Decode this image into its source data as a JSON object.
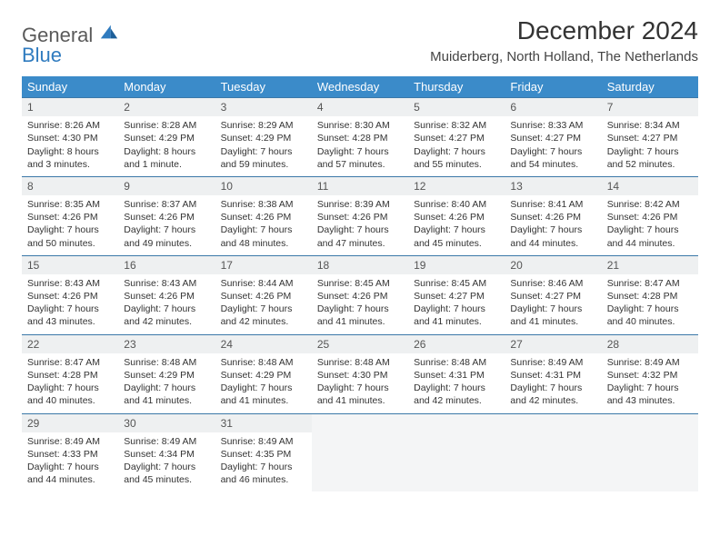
{
  "logo": {
    "general": "General",
    "blue": "Blue"
  },
  "title": "December 2024",
  "location": "Muiderberg, North Holland, The Netherlands",
  "colors": {
    "header_bg": "#3b8bc9",
    "header_text": "#ffffff",
    "daynum_bg": "#eef0f1",
    "daynum_border": "#3b78a8",
    "logo_blue": "#2f7bbf",
    "logo_gray": "#5a5a5a"
  },
  "weekdays": [
    "Sunday",
    "Monday",
    "Tuesday",
    "Wednesday",
    "Thursday",
    "Friday",
    "Saturday"
  ],
  "weeks": [
    [
      {
        "day": "1",
        "sunrise": "Sunrise: 8:26 AM",
        "sunset": "Sunset: 4:30 PM",
        "daylight": "Daylight: 8 hours and 3 minutes."
      },
      {
        "day": "2",
        "sunrise": "Sunrise: 8:28 AM",
        "sunset": "Sunset: 4:29 PM",
        "daylight": "Daylight: 8 hours and 1 minute."
      },
      {
        "day": "3",
        "sunrise": "Sunrise: 8:29 AM",
        "sunset": "Sunset: 4:29 PM",
        "daylight": "Daylight: 7 hours and 59 minutes."
      },
      {
        "day": "4",
        "sunrise": "Sunrise: 8:30 AM",
        "sunset": "Sunset: 4:28 PM",
        "daylight": "Daylight: 7 hours and 57 minutes."
      },
      {
        "day": "5",
        "sunrise": "Sunrise: 8:32 AM",
        "sunset": "Sunset: 4:27 PM",
        "daylight": "Daylight: 7 hours and 55 minutes."
      },
      {
        "day": "6",
        "sunrise": "Sunrise: 8:33 AM",
        "sunset": "Sunset: 4:27 PM",
        "daylight": "Daylight: 7 hours and 54 minutes."
      },
      {
        "day": "7",
        "sunrise": "Sunrise: 8:34 AM",
        "sunset": "Sunset: 4:27 PM",
        "daylight": "Daylight: 7 hours and 52 minutes."
      }
    ],
    [
      {
        "day": "8",
        "sunrise": "Sunrise: 8:35 AM",
        "sunset": "Sunset: 4:26 PM",
        "daylight": "Daylight: 7 hours and 50 minutes."
      },
      {
        "day": "9",
        "sunrise": "Sunrise: 8:37 AM",
        "sunset": "Sunset: 4:26 PM",
        "daylight": "Daylight: 7 hours and 49 minutes."
      },
      {
        "day": "10",
        "sunrise": "Sunrise: 8:38 AM",
        "sunset": "Sunset: 4:26 PM",
        "daylight": "Daylight: 7 hours and 48 minutes."
      },
      {
        "day": "11",
        "sunrise": "Sunrise: 8:39 AM",
        "sunset": "Sunset: 4:26 PM",
        "daylight": "Daylight: 7 hours and 47 minutes."
      },
      {
        "day": "12",
        "sunrise": "Sunrise: 8:40 AM",
        "sunset": "Sunset: 4:26 PM",
        "daylight": "Daylight: 7 hours and 45 minutes."
      },
      {
        "day": "13",
        "sunrise": "Sunrise: 8:41 AM",
        "sunset": "Sunset: 4:26 PM",
        "daylight": "Daylight: 7 hours and 44 minutes."
      },
      {
        "day": "14",
        "sunrise": "Sunrise: 8:42 AM",
        "sunset": "Sunset: 4:26 PM",
        "daylight": "Daylight: 7 hours and 44 minutes."
      }
    ],
    [
      {
        "day": "15",
        "sunrise": "Sunrise: 8:43 AM",
        "sunset": "Sunset: 4:26 PM",
        "daylight": "Daylight: 7 hours and 43 minutes."
      },
      {
        "day": "16",
        "sunrise": "Sunrise: 8:43 AM",
        "sunset": "Sunset: 4:26 PM",
        "daylight": "Daylight: 7 hours and 42 minutes."
      },
      {
        "day": "17",
        "sunrise": "Sunrise: 8:44 AM",
        "sunset": "Sunset: 4:26 PM",
        "daylight": "Daylight: 7 hours and 42 minutes."
      },
      {
        "day": "18",
        "sunrise": "Sunrise: 8:45 AM",
        "sunset": "Sunset: 4:26 PM",
        "daylight": "Daylight: 7 hours and 41 minutes."
      },
      {
        "day": "19",
        "sunrise": "Sunrise: 8:45 AM",
        "sunset": "Sunset: 4:27 PM",
        "daylight": "Daylight: 7 hours and 41 minutes."
      },
      {
        "day": "20",
        "sunrise": "Sunrise: 8:46 AM",
        "sunset": "Sunset: 4:27 PM",
        "daylight": "Daylight: 7 hours and 41 minutes."
      },
      {
        "day": "21",
        "sunrise": "Sunrise: 8:47 AM",
        "sunset": "Sunset: 4:28 PM",
        "daylight": "Daylight: 7 hours and 40 minutes."
      }
    ],
    [
      {
        "day": "22",
        "sunrise": "Sunrise: 8:47 AM",
        "sunset": "Sunset: 4:28 PM",
        "daylight": "Daylight: 7 hours and 40 minutes."
      },
      {
        "day": "23",
        "sunrise": "Sunrise: 8:48 AM",
        "sunset": "Sunset: 4:29 PM",
        "daylight": "Daylight: 7 hours and 41 minutes."
      },
      {
        "day": "24",
        "sunrise": "Sunrise: 8:48 AM",
        "sunset": "Sunset: 4:29 PM",
        "daylight": "Daylight: 7 hours and 41 minutes."
      },
      {
        "day": "25",
        "sunrise": "Sunrise: 8:48 AM",
        "sunset": "Sunset: 4:30 PM",
        "daylight": "Daylight: 7 hours and 41 minutes."
      },
      {
        "day": "26",
        "sunrise": "Sunrise: 8:48 AM",
        "sunset": "Sunset: 4:31 PM",
        "daylight": "Daylight: 7 hours and 42 minutes."
      },
      {
        "day": "27",
        "sunrise": "Sunrise: 8:49 AM",
        "sunset": "Sunset: 4:31 PM",
        "daylight": "Daylight: 7 hours and 42 minutes."
      },
      {
        "day": "28",
        "sunrise": "Sunrise: 8:49 AM",
        "sunset": "Sunset: 4:32 PM",
        "daylight": "Daylight: 7 hours and 43 minutes."
      }
    ],
    [
      {
        "day": "29",
        "sunrise": "Sunrise: 8:49 AM",
        "sunset": "Sunset: 4:33 PM",
        "daylight": "Daylight: 7 hours and 44 minutes."
      },
      {
        "day": "30",
        "sunrise": "Sunrise: 8:49 AM",
        "sunset": "Sunset: 4:34 PM",
        "daylight": "Daylight: 7 hours and 45 minutes."
      },
      {
        "day": "31",
        "sunrise": "Sunrise: 8:49 AM",
        "sunset": "Sunset: 4:35 PM",
        "daylight": "Daylight: 7 hours and 46 minutes."
      },
      null,
      null,
      null,
      null
    ]
  ]
}
